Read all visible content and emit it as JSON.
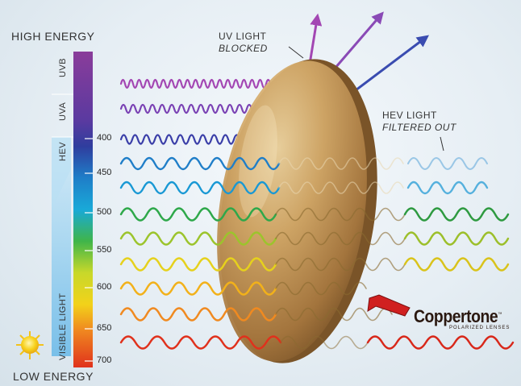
{
  "labels": {
    "high_energy": "HIGH ENERGY",
    "low_energy": "LOW ENERGY",
    "uv_light": "UV LIGHT",
    "uv_blocked": "BLOCKED",
    "hev_light": "HEV LIGHT",
    "hev_filtered": "FILTERED OUT"
  },
  "spectrum_zones": {
    "uvb": "UVB",
    "uva": "UVA",
    "hev": "HEV",
    "visible": "VISIBLE LIGHT"
  },
  "wavelength_ticks": [
    "400",
    "450",
    "500",
    "550",
    "600",
    "650",
    "700"
  ],
  "brand": {
    "name": "Coppertone",
    "tm": "™",
    "tagline": "POLARIZED LENSES"
  },
  "colors": {
    "uvb": "#8a3c9a",
    "uva": "#4a3a9c",
    "hev_blue": "#2b5bb0",
    "lens": "#c79a5a",
    "arrow": "#d02020"
  }
}
